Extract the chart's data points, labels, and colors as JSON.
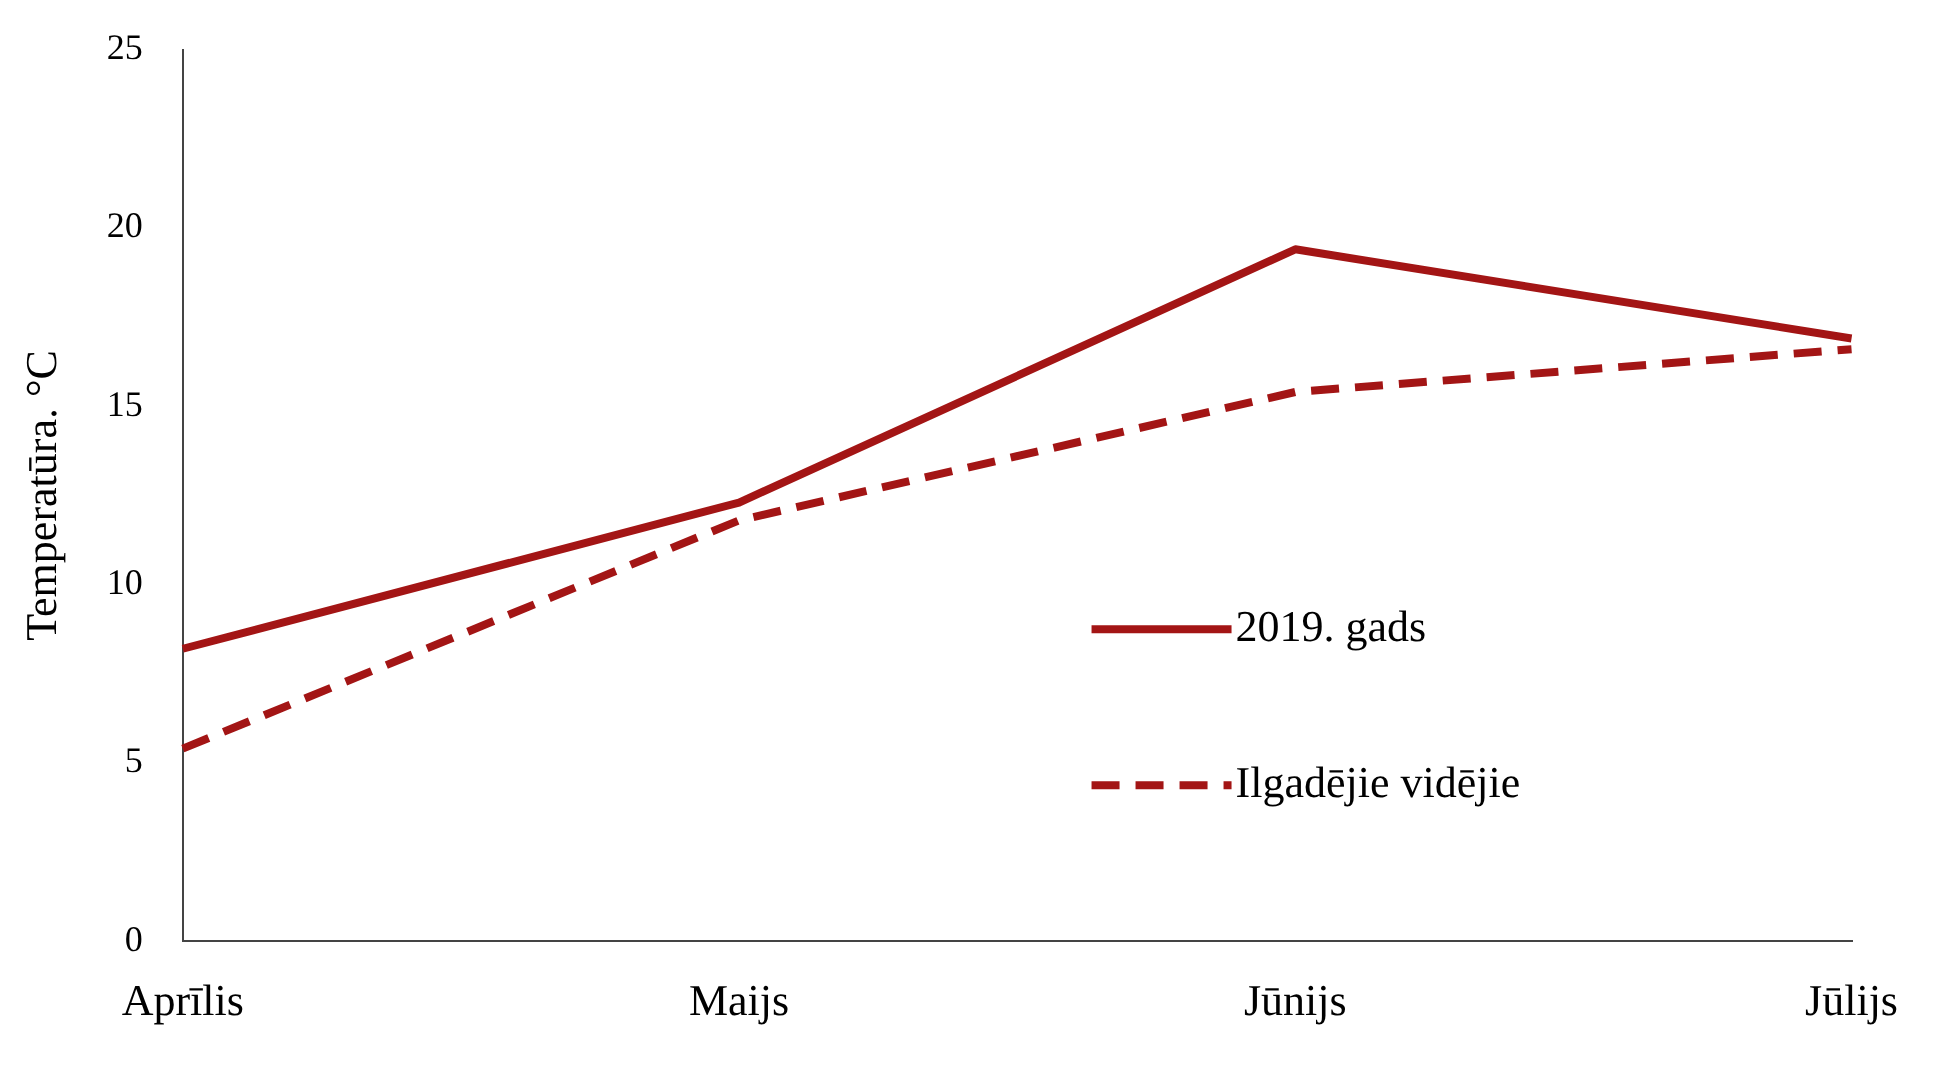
{
  "chart_data": {
    "type": "line",
    "ylabel": "Temperatūra. °C",
    "categories": [
      "Aprīlis",
      "Maijs",
      "Jūnijs",
      "Jūlijs"
    ],
    "series": [
      {
        "name": "2019. gads",
        "color": "#a31515",
        "line_style": "solid",
        "values": [
          8.2,
          12.3,
          19.4,
          16.9
        ]
      },
      {
        "name": "Ilgadējie vidējie",
        "color": "#a31515",
        "line_style": "dashed",
        "values": [
          5.4,
          11.8,
          15.4,
          16.6
        ]
      }
    ],
    "ylim": [
      0,
      25
    ],
    "yticks": [
      0,
      5,
      10,
      15,
      20,
      25
    ],
    "grid": false,
    "legend": "right",
    "marker": "none"
  }
}
